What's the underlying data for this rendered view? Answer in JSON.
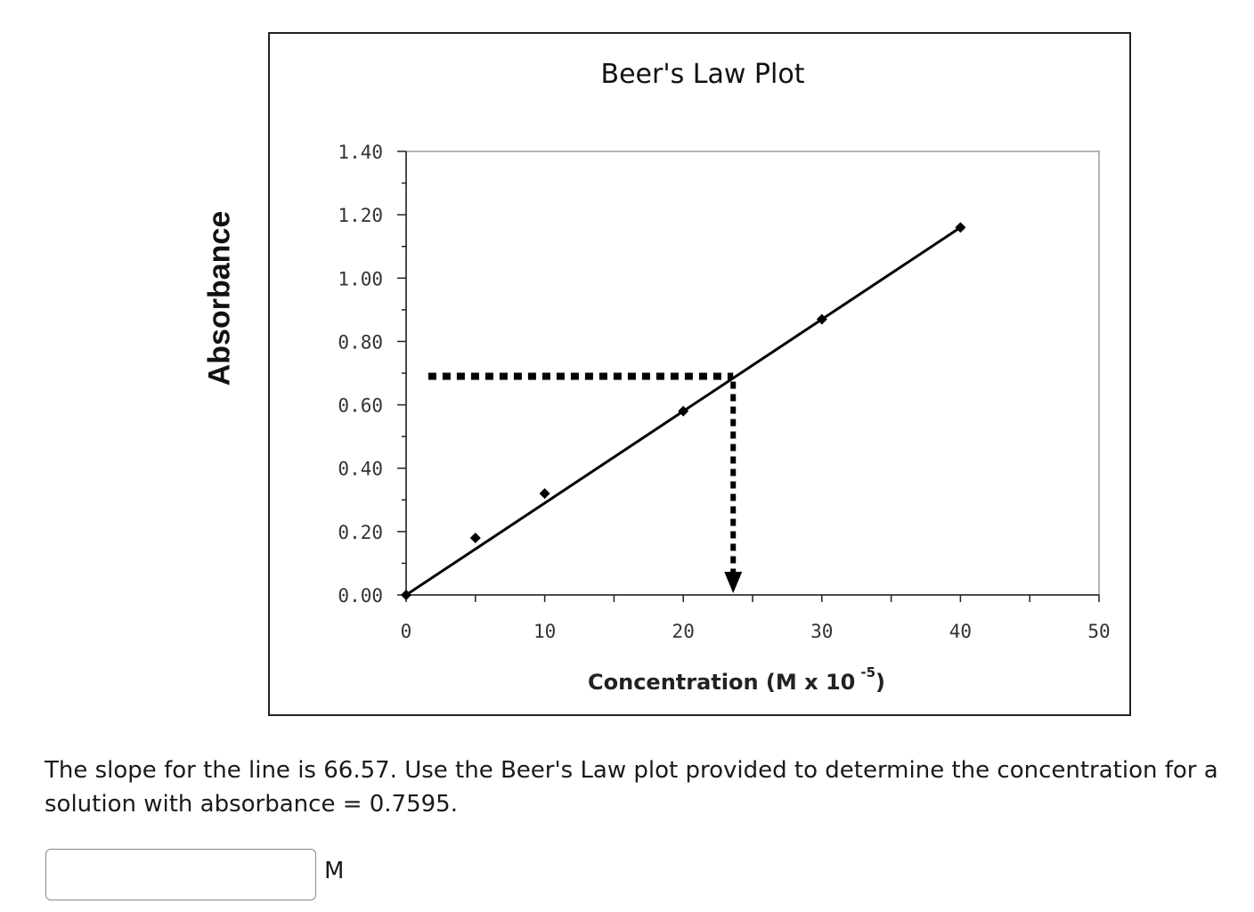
{
  "chart_data": {
    "type": "scatter",
    "title": "Beer's Law Plot",
    "xlabel_main": "Concentration (M x 10",
    "xlabel_exponent": "-5",
    "xlabel_close": ")",
    "ylabel": "Absorbance",
    "xlim": [
      0,
      50
    ],
    "ylim": [
      0,
      1.4
    ],
    "x_ticks": [
      0,
      10,
      20,
      30,
      40,
      50
    ],
    "x_tick_labels": [
      "0",
      "10",
      "20",
      "30",
      "40",
      "50"
    ],
    "y_ticks": [
      0,
      0.2,
      0.4,
      0.6,
      0.8,
      1.0,
      1.2,
      1.4
    ],
    "y_tick_labels": [
      "0.00",
      "0.20",
      "0.40",
      "0.60",
      "0.80",
      "1.00",
      "1.20",
      "1.40"
    ],
    "points": [
      {
        "x": 0,
        "y": 0.0
      },
      {
        "x": 5,
        "y": 0.18
      },
      {
        "x": 10,
        "y": 0.32
      },
      {
        "x": 20,
        "y": 0.58
      },
      {
        "x": 30,
        "y": 0.87
      },
      {
        "x": 40,
        "y": 1.16
      }
    ],
    "fit_line": {
      "x": [
        0,
        40
      ],
      "y": [
        0,
        1.16
      ]
    },
    "guide": {
      "from_x": 1.6,
      "at_y": 0.69,
      "at_x": 23.6
    },
    "grid": false,
    "legend": false
  },
  "question": {
    "text": "The slope for the line is 66.57. Use the Beer's Law plot provided to determine the concentration for a solution with absorbance = 0.7595."
  },
  "answer": {
    "value": "",
    "placeholder": "",
    "unit": "M"
  }
}
